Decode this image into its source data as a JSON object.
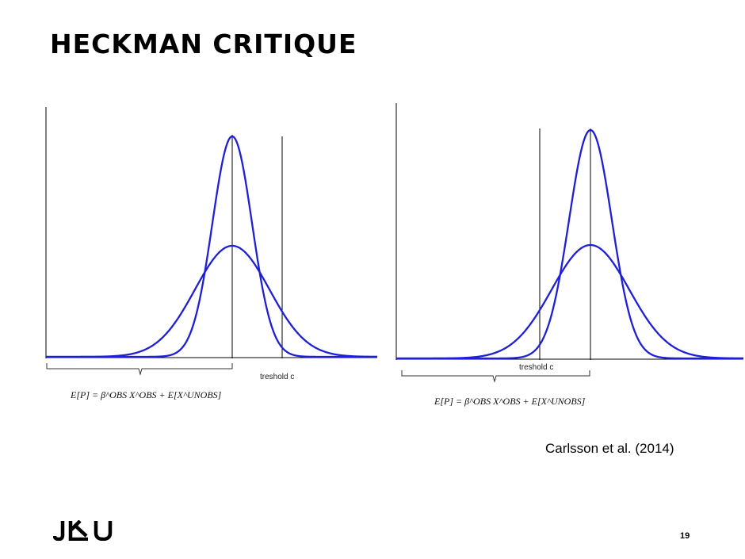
{
  "slide": {
    "title": "HECKMAN CRITIQUE",
    "citation": "Carlsson et al. (2014)",
    "page_number": "19",
    "logo_text": "JKU"
  },
  "diagrams": [
    {
      "threshold_label": "treshold c",
      "formula_text": "E[P] = β^OBS X^OBS + E[X^UNOBS]"
    },
    {
      "threshold_label": "treshold c",
      "formula_text": "E[P] = β^OBS X^OBS + E[X^UNOBS]"
    }
  ],
  "colors": {
    "curve": "#1f1fd6",
    "axis": "#000000"
  }
}
